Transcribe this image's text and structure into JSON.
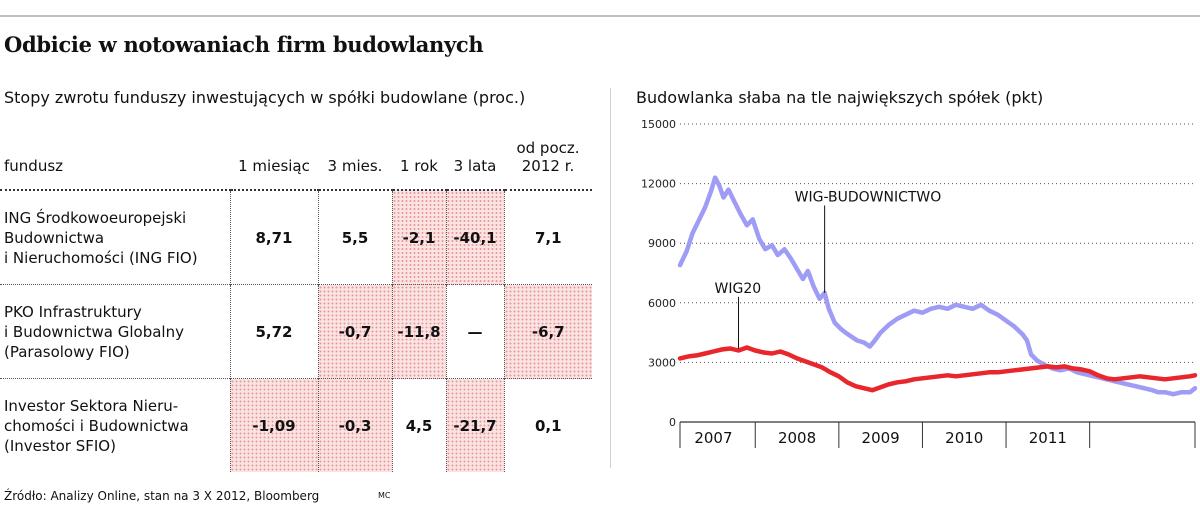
{
  "title": "Odbicie w notowaniach firm budowlanych",
  "source_note": "Źródło: Analizy Online, stan na 3 X 2012, Bloomberg",
  "author_mark": "MC",
  "table": {
    "subtitle": "Stopy zwrotu funduszy inwestujących w spółki budowlane (proc.)",
    "headers": {
      "fund": "fundusz",
      "m1": "1 miesiąc",
      "m3": "3 mies.",
      "y1": "1 rok",
      "y3": "3 lata",
      "ytd_line1": "od pocz.",
      "ytd_line2": "2012 r."
    },
    "rows": [
      {
        "name": [
          "ING Środkowoeuropejski",
          "Budownictwa",
          "i Nieruchomości (ING FIO)"
        ],
        "m1": "8,71",
        "m3": "5,5",
        "y1": "-2,1",
        "y3": "-40,1",
        "ytd": "7,1"
      },
      {
        "name": [
          "PKO Infrastruktury",
          "i Budownictwa Globalny",
          "(Parasolowy FIO)"
        ],
        "m1": "5,72",
        "m3": "-0,7",
        "y1": "-11,8",
        "y3": "—",
        "ytd": "-6,7"
      },
      {
        "name": [
          "Investor Sektora Nieru-",
          "chomości i Budownictwa",
          "(Investor SFIO)"
        ],
        "m1": "-1,09",
        "m3": "-0,3",
        "y1": "4,5",
        "y3": "-21,7",
        "ytd": "0,1"
      }
    ]
  },
  "chart_data": {
    "type": "line",
    "title": "Budowlanka słaba na tle największych spółek (pkt)",
    "xlabel": "",
    "ylabel": "pkt",
    "xlim": [
      2006.6,
      2012.76
    ],
    "ylim": [
      0,
      15000
    ],
    "y_ticks": [
      0,
      3000,
      6000,
      9000,
      12000,
      15000
    ],
    "x_year_labels": [
      {
        "label": "2007",
        "x": 2007
      },
      {
        "label": "2008",
        "x": 2008
      },
      {
        "label": "2009",
        "x": 2009
      },
      {
        "label": "2010",
        "x": 2010
      },
      {
        "label": "2011",
        "x": 2011
      }
    ],
    "x_boundaries": [
      2006.6,
      2007.5,
      2008.5,
      2009.5,
      2010.5,
      2011.5,
      2012.76
    ],
    "grid": "horizontal-dotted",
    "series": [
      {
        "name": "WIG-BUDOWNICTWO",
        "color": "#9e9cf4",
        "points": [
          [
            2006.6,
            7900
          ],
          [
            2006.68,
            8600
          ],
          [
            2006.75,
            9500
          ],
          [
            2006.82,
            10100
          ],
          [
            2006.9,
            10800
          ],
          [
            2006.97,
            11600
          ],
          [
            2007.02,
            12300
          ],
          [
            2007.07,
            11900
          ],
          [
            2007.12,
            11300
          ],
          [
            2007.18,
            11700
          ],
          [
            2007.25,
            11100
          ],
          [
            2007.32,
            10500
          ],
          [
            2007.4,
            9900
          ],
          [
            2007.47,
            10200
          ],
          [
            2007.55,
            9200
          ],
          [
            2007.62,
            8700
          ],
          [
            2007.7,
            8900
          ],
          [
            2007.77,
            8400
          ],
          [
            2007.85,
            8700
          ],
          [
            2007.93,
            8200
          ],
          [
            2008.0,
            7700
          ],
          [
            2008.07,
            7200
          ],
          [
            2008.13,
            7600
          ],
          [
            2008.2,
            6800
          ],
          [
            2008.27,
            6200
          ],
          [
            2008.33,
            6500
          ],
          [
            2008.38,
            5700
          ],
          [
            2008.45,
            5000
          ],
          [
            2008.52,
            4700
          ],
          [
            2008.58,
            4500
          ],
          [
            2008.65,
            4300
          ],
          [
            2008.72,
            4100
          ],
          [
            2008.8,
            4000
          ],
          [
            2008.87,
            3800
          ],
          [
            2008.93,
            4100
          ],
          [
            2009.0,
            4500
          ],
          [
            2009.1,
            4900
          ],
          [
            2009.2,
            5200
          ],
          [
            2009.3,
            5400
          ],
          [
            2009.4,
            5600
          ],
          [
            2009.5,
            5500
          ],
          [
            2009.6,
            5700
          ],
          [
            2009.7,
            5800
          ],
          [
            2009.8,
            5700
          ],
          [
            2009.9,
            5900
          ],
          [
            2010.0,
            5800
          ],
          [
            2010.1,
            5700
          ],
          [
            2010.2,
            5900
          ],
          [
            2010.3,
            5600
          ],
          [
            2010.4,
            5400
          ],
          [
            2010.5,
            5100
          ],
          [
            2010.6,
            4800
          ],
          [
            2010.7,
            4400
          ],
          [
            2010.75,
            4100
          ],
          [
            2010.8,
            3400
          ],
          [
            2010.87,
            3100
          ],
          [
            2010.95,
            2900
          ],
          [
            2011.05,
            2700
          ],
          [
            2011.15,
            2600
          ],
          [
            2011.25,
            2700
          ],
          [
            2011.35,
            2500
          ],
          [
            2011.45,
            2400
          ],
          [
            2011.55,
            2300
          ],
          [
            2011.65,
            2200
          ],
          [
            2011.75,
            2100
          ],
          [
            2011.85,
            2000
          ],
          [
            2011.95,
            1900
          ],
          [
            2012.05,
            1800
          ],
          [
            2012.15,
            1700
          ],
          [
            2012.25,
            1600
          ],
          [
            2012.32,
            1500
          ],
          [
            2012.4,
            1500
          ],
          [
            2012.5,
            1400
          ],
          [
            2012.6,
            1500
          ],
          [
            2012.7,
            1500
          ],
          [
            2012.76,
            1700
          ]
        ]
      },
      {
        "name": "WIG20",
        "color": "#e8262b",
        "points": [
          [
            2006.6,
            3200
          ],
          [
            2006.7,
            3300
          ],
          [
            2006.8,
            3350
          ],
          [
            2006.9,
            3450
          ],
          [
            2007.0,
            3550
          ],
          [
            2007.1,
            3650
          ],
          [
            2007.2,
            3700
          ],
          [
            2007.3,
            3600
          ],
          [
            2007.4,
            3750
          ],
          [
            2007.5,
            3600
          ],
          [
            2007.6,
            3500
          ],
          [
            2007.7,
            3450
          ],
          [
            2007.8,
            3550
          ],
          [
            2007.9,
            3400
          ],
          [
            2008.0,
            3200
          ],
          [
            2008.1,
            3050
          ],
          [
            2008.2,
            2900
          ],
          [
            2008.3,
            2750
          ],
          [
            2008.4,
            2500
          ],
          [
            2008.5,
            2300
          ],
          [
            2008.6,
            2000
          ],
          [
            2008.7,
            1800
          ],
          [
            2008.8,
            1700
          ],
          [
            2008.9,
            1600
          ],
          [
            2009.0,
            1750
          ],
          [
            2009.1,
            1900
          ],
          [
            2009.2,
            2000
          ],
          [
            2009.3,
            2050
          ],
          [
            2009.4,
            2150
          ],
          [
            2009.5,
            2200
          ],
          [
            2009.6,
            2250
          ],
          [
            2009.7,
            2300
          ],
          [
            2009.8,
            2350
          ],
          [
            2009.9,
            2300
          ],
          [
            2010.0,
            2350
          ],
          [
            2010.1,
            2400
          ],
          [
            2010.2,
            2450
          ],
          [
            2010.3,
            2500
          ],
          [
            2010.4,
            2500
          ],
          [
            2010.5,
            2550
          ],
          [
            2010.6,
            2600
          ],
          [
            2010.7,
            2650
          ],
          [
            2010.8,
            2700
          ],
          [
            2010.9,
            2750
          ],
          [
            2011.0,
            2800
          ],
          [
            2011.1,
            2750
          ],
          [
            2011.2,
            2800
          ],
          [
            2011.3,
            2700
          ],
          [
            2011.4,
            2650
          ],
          [
            2011.5,
            2550
          ],
          [
            2011.6,
            2350
          ],
          [
            2011.7,
            2200
          ],
          [
            2011.8,
            2150
          ],
          [
            2011.9,
            2200
          ],
          [
            2012.0,
            2250
          ],
          [
            2012.1,
            2300
          ],
          [
            2012.2,
            2250
          ],
          [
            2012.3,
            2200
          ],
          [
            2012.4,
            2150
          ],
          [
            2012.5,
            2200
          ],
          [
            2012.6,
            2250
          ],
          [
            2012.7,
            2300
          ],
          [
            2012.76,
            2350
          ]
        ]
      }
    ],
    "annotations": [
      {
        "text": "WIG-BUDOWNICTWO",
        "series": "WIG-BUDOWNICTWO",
        "point": [
          2008.33,
          6500
        ]
      },
      {
        "text": "WIG20",
        "series": "WIG20",
        "point": [
          2007.3,
          3700
        ]
      }
    ]
  }
}
